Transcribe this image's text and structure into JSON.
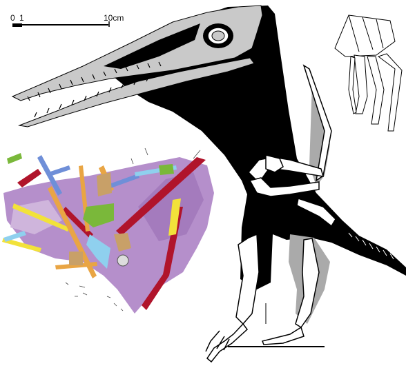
{
  "scale_bar": {
    "label_zero": "0",
    "label_one": "1",
    "label_ten": "10cm"
  },
  "colors": {
    "silhouette": "#000000",
    "skull_bone": "#c9c9c9",
    "gray_flap": "#aaaaaa",
    "matrix_purple": "#b58fcb",
    "bone_red": "#b0142b",
    "bone_yellow": "#f2e23a",
    "bone_orange": "#e9a544",
    "bone_green": "#7ab83a",
    "bone_blue": "#6f8fd8",
    "bone_cyan": "#8fd0ee",
    "bone_tan": "#c8a068"
  }
}
